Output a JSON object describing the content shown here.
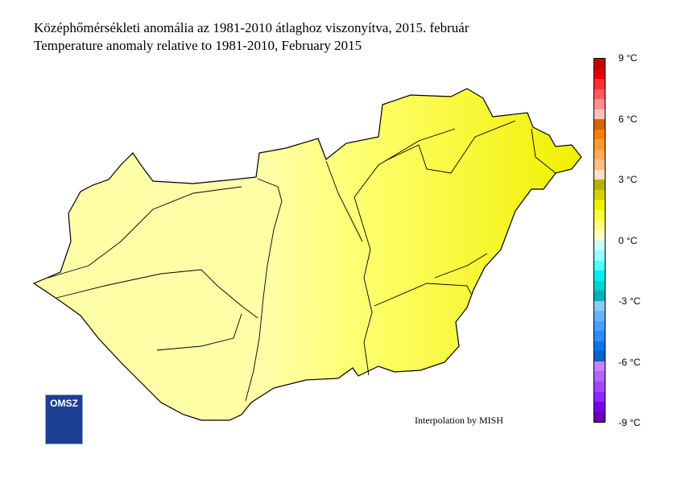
{
  "title_hu": "Középhőmérsékleti anomália az 1981-2010 átlaghoz viszonyítva, 2015. február",
  "title_en": "Temperature anomaly relative to 1981-2010, February 2015",
  "credit": "Interpolation by MISH",
  "logo_text": "OMSZ",
  "colorbar": {
    "range": [
      -9,
      9
    ],
    "step": 0.5,
    "unit": "°C",
    "tick_labels": [
      "9 °C",
      "6 °C",
      "3 °C",
      "0 °C",
      "-3 °C",
      "-6 °C",
      "-9 °C"
    ],
    "colors_top_to_bottom": [
      "#c80000",
      "#e60000",
      "#ff3030",
      "#ff5a5a",
      "#ff8c8c",
      "#ffc0c0",
      "#dc6400",
      "#ff8000",
      "#ff9a30",
      "#ffaa55",
      "#ffc080",
      "#ffe0c0",
      "#b4b400",
      "#d2d200",
      "#f0f000",
      "#ffff40",
      "#ffff80",
      "#ffffc8",
      "#c8ffff",
      "#96ffff",
      "#50ffff",
      "#00f0f0",
      "#00d2d2",
      "#00b4b4",
      "#8cc8ff",
      "#64b4ff",
      "#46a0ff",
      "#288cff",
      "#0078f0",
      "#0064d2",
      "#c882ff",
      "#b464ff",
      "#a046ff",
      "#8c28ff",
      "#7800e6",
      "#6400b4"
    ]
  },
  "map_colors": {
    "west": "#ffffa8",
    "central": "#ffff70",
    "east": "#f0f000",
    "border": "#000000"
  }
}
